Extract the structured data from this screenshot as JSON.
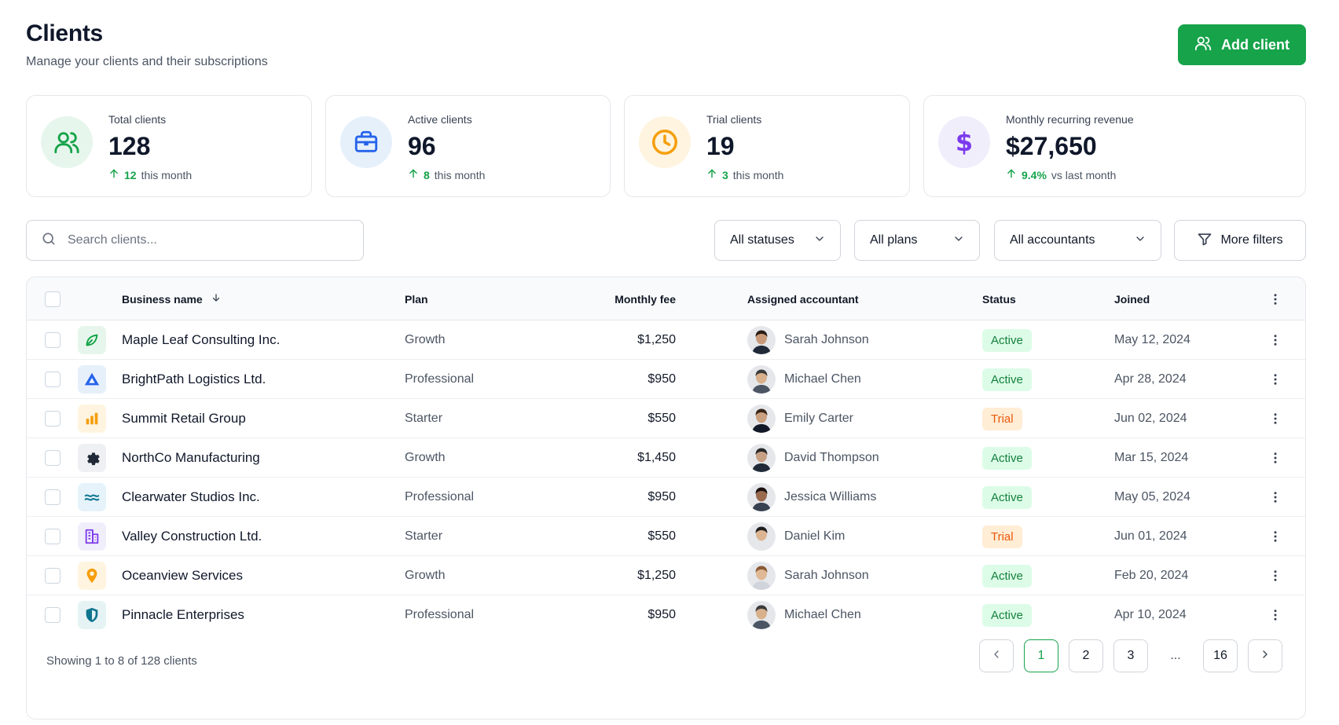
{
  "header": {
    "title": "Clients",
    "subtitle": "Manage your clients and their subscriptions",
    "add_button": "Add client"
  },
  "kpis": [
    {
      "label": "Total clients",
      "value": "128",
      "delta": "12",
      "suffix": "this month",
      "icon": "users-icon"
    },
    {
      "label": "Active clients",
      "value": "96",
      "delta": "8",
      "suffix": "this month",
      "icon": "briefcase-icon"
    },
    {
      "label": "Trial clients",
      "value": "19",
      "delta": "3",
      "suffix": "this month",
      "icon": "clock-icon"
    },
    {
      "label": "Monthly recurring revenue",
      "value": "$27,650",
      "delta": "9.4%",
      "suffix": "vs last month",
      "icon": "dollar-icon"
    }
  ],
  "filters": {
    "search_placeholder": "Search clients...",
    "status": "All statuses",
    "plans": "All plans",
    "accountants": "All accountants",
    "more": "More filters"
  },
  "table": {
    "columns": {
      "business": "Business name",
      "plan": "Plan",
      "fee": "Monthly fee",
      "accountant": "Assigned accountant",
      "status": "Status",
      "joined": "Joined"
    },
    "rows": [
      {
        "name": "Maple Leaf Consulting Inc.",
        "plan": "Growth",
        "fee": "$1,250",
        "accountant": "Sarah Johnson",
        "status": "Active",
        "joined": "May 12, 2024"
      },
      {
        "name": "BrightPath Logistics Ltd.",
        "plan": "Professional",
        "fee": "$950",
        "accountant": "Michael Chen",
        "status": "Active",
        "joined": "Apr 28, 2024"
      },
      {
        "name": "Summit Retail Group",
        "plan": "Starter",
        "fee": "$550",
        "accountant": "Emily Carter",
        "status": "Trial",
        "joined": "Jun 02, 2024"
      },
      {
        "name": "NorthCo Manufacturing",
        "plan": "Growth",
        "fee": "$1,450",
        "accountant": "David Thompson",
        "status": "Active",
        "joined": "Mar 15, 2024"
      },
      {
        "name": "Clearwater Studios Inc.",
        "plan": "Professional",
        "fee": "$950",
        "accountant": "Jessica Williams",
        "status": "Active",
        "joined": "May 05, 2024"
      },
      {
        "name": "Valley Construction Ltd.",
        "plan": "Starter",
        "fee": "$550",
        "accountant": "Daniel Kim",
        "status": "Trial",
        "joined": "Jun 01, 2024"
      },
      {
        "name": "Oceanview Services",
        "plan": "Growth",
        "fee": "$1,250",
        "accountant": "Sarah Johnson",
        "status": "Active",
        "joined": "Feb 20, 2024"
      },
      {
        "name": "Pinnacle Enterprises",
        "plan": "Professional",
        "fee": "$950",
        "accountant": "Michael Chen",
        "status": "Active",
        "joined": "Apr 10, 2024"
      }
    ],
    "row_icons": [
      "leaf-icon",
      "triangle-logo-icon",
      "bar-chart-icon",
      "gear-icon",
      "waves-icon",
      "building-icon",
      "location-pin-icon",
      "shield-icon"
    ]
  },
  "pagination": {
    "summary": "Showing 1 to 8 of 128 clients",
    "pages": [
      "1",
      "2",
      "3"
    ],
    "ellipsis": "...",
    "last": "16",
    "current": "1"
  },
  "colors": {
    "accent": "#16a34a",
    "active_bg": "#dcfce7",
    "active_fg": "#15803d",
    "trial_bg": "#ffedd5",
    "trial_fg": "#ea580c"
  }
}
